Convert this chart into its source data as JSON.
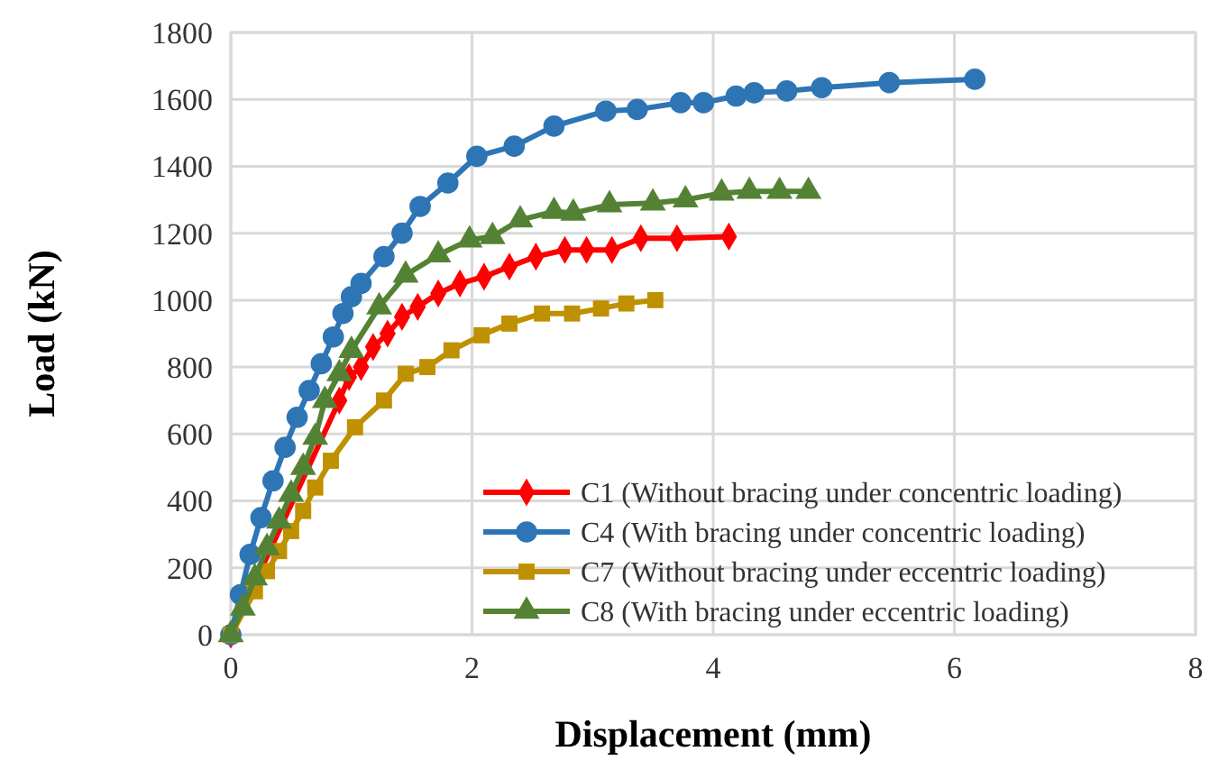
{
  "chart_data": {
    "type": "line",
    "xlabel": "Displacement (mm)",
    "ylabel": "Load (kN)",
    "xlim": [
      0,
      8
    ],
    "xticks": [
      0,
      2,
      4,
      6,
      8
    ],
    "ylim": [
      0,
      1800
    ],
    "yticks": [
      0,
      200,
      400,
      600,
      800,
      1000,
      1200,
      1400,
      1600,
      1800
    ],
    "grid": true,
    "legend": "bottom right",
    "line_style": "solid",
    "series": [
      {
        "name": "C1 (Without bracing under concentric loading)",
        "color": "#ff0000",
        "marker": "diamond",
        "x": [
          0,
          0.9,
          0.98,
          1.08,
          1.18,
          1.3,
          1.42,
          1.55,
          1.72,
          1.9,
          2.1,
          2.31,
          2.53,
          2.77,
          2.95,
          3.16,
          3.4,
          3.7,
          4.13
        ],
        "values": [
          0,
          700,
          770,
          800,
          860,
          900,
          950,
          980,
          1020,
          1050,
          1070,
          1100,
          1130,
          1150,
          1150,
          1150,
          1185,
          1185,
          1190
        ]
      },
      {
        "name": "C4 (With bracing under concentric loading)",
        "color": "#2e75b6",
        "marker": "circle",
        "x": [
          0,
          0.08,
          0.16,
          0.25,
          0.35,
          0.45,
          0.55,
          0.65,
          0.75,
          0.85,
          0.93,
          1.0,
          1.08,
          1.27,
          1.42,
          1.57,
          1.8,
          2.04,
          2.35,
          2.68,
          3.11,
          3.37,
          3.73,
          3.92,
          4.19,
          4.34,
          4.61,
          4.9,
          5.46,
          6.17
        ],
        "values": [
          0,
          120,
          240,
          350,
          460,
          560,
          650,
          730,
          810,
          890,
          960,
          1010,
          1050,
          1130,
          1200,
          1280,
          1350,
          1430,
          1460,
          1520,
          1565,
          1570,
          1590,
          1590,
          1610,
          1620,
          1625,
          1635,
          1650,
          1660
        ]
      },
      {
        "name": "C7 (Without bracing under eccentric loading)",
        "color": "#bf9000",
        "marker": "square",
        "x": [
          0,
          0.2,
          0.3,
          0.4,
          0.5,
          0.6,
          0.7,
          0.83,
          1.03,
          1.27,
          1.45,
          1.63,
          1.83,
          2.08,
          2.31,
          2.58,
          2.83,
          3.07,
          3.28,
          3.52
        ],
        "values": [
          0,
          130,
          190,
          250,
          310,
          370,
          440,
          520,
          620,
          700,
          780,
          800,
          850,
          895,
          930,
          960,
          960,
          975,
          990,
          1000
        ]
      },
      {
        "name": "C8 (With bracing under eccentric loading)",
        "color": "#548235",
        "marker": "triangle",
        "x": [
          0,
          0.1,
          0.2,
          0.3,
          0.4,
          0.5,
          0.6,
          0.7,
          0.78,
          0.9,
          1.0,
          1.23,
          1.45,
          1.72,
          1.98,
          2.17,
          2.4,
          2.68,
          2.84,
          3.14,
          3.5,
          3.77,
          4.07,
          4.3,
          4.55,
          4.79
        ],
        "values": [
          0,
          80,
          170,
          260,
          340,
          420,
          500,
          590,
          700,
          780,
          850,
          980,
          1075,
          1135,
          1180,
          1190,
          1240,
          1265,
          1260,
          1285,
          1290,
          1300,
          1320,
          1325,
          1325,
          1325
        ]
      }
    ]
  }
}
